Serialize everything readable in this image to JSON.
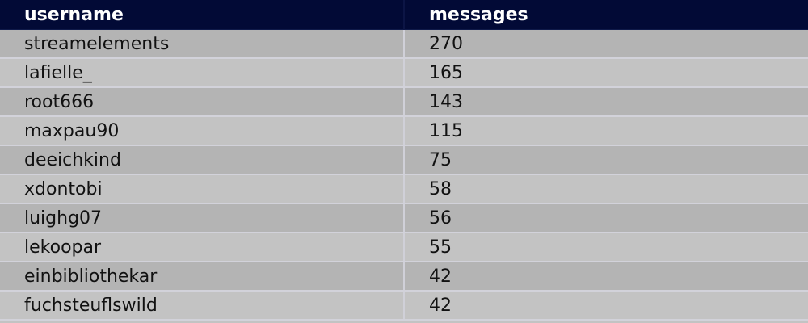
{
  "table": {
    "headers": [
      "username",
      "messages"
    ],
    "rows": [
      [
        "streamelements",
        "270"
      ],
      [
        "lafielle_",
        "165"
      ],
      [
        "root666",
        "143"
      ],
      [
        "maxpau90",
        "115"
      ],
      [
        "deeichkind",
        "75"
      ],
      [
        "xdontobi",
        "58"
      ],
      [
        "luighg07",
        "56"
      ],
      [
        "lekoopar",
        "55"
      ],
      [
        "einbibliothekar",
        "42"
      ],
      [
        "fuchsteuflswild",
        "42"
      ]
    ]
  },
  "colors": {
    "header_bg": "#020a36",
    "row_odd": "#b4b4b4",
    "row_even": "#c3c3c3"
  }
}
